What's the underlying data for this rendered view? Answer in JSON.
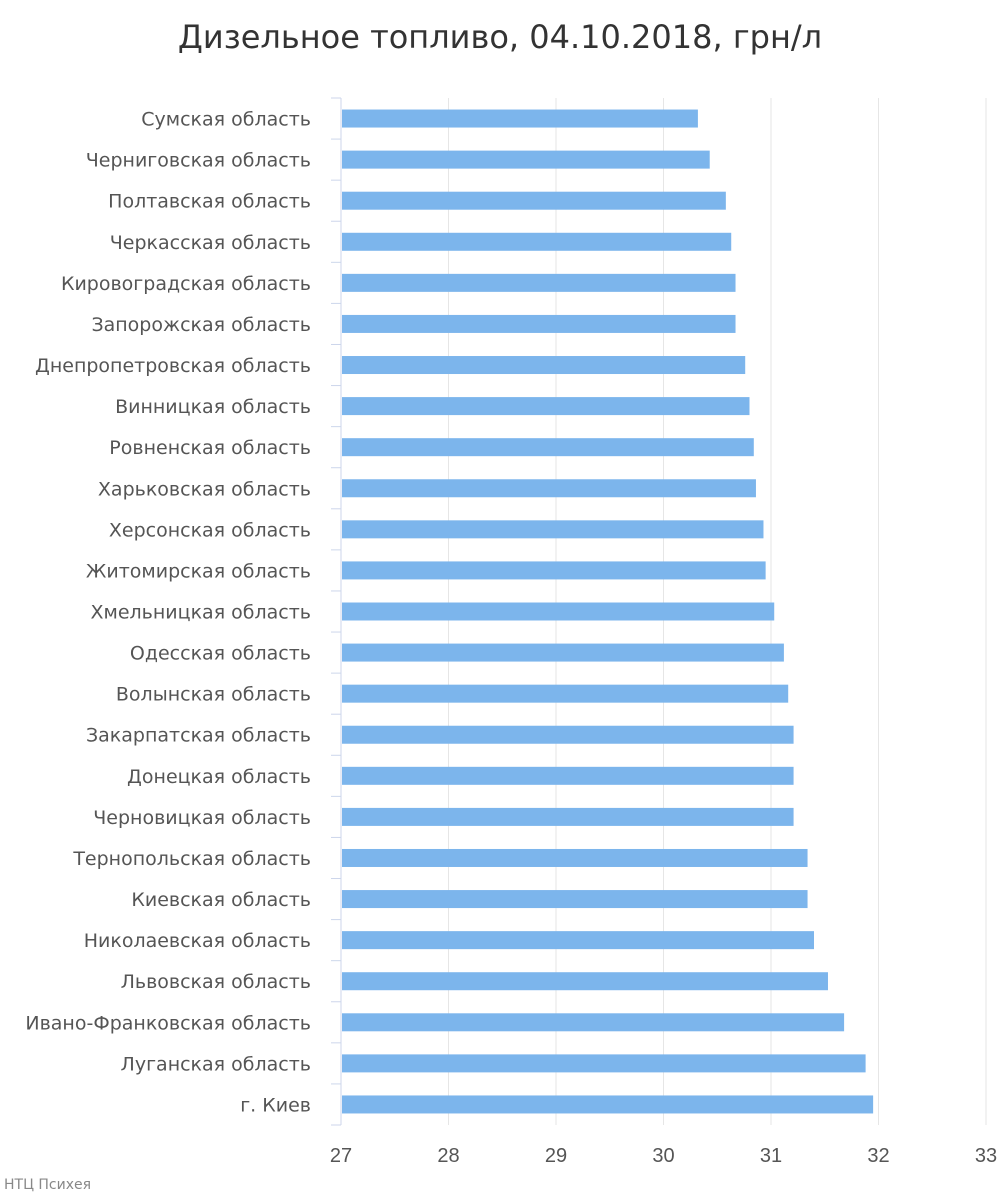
{
  "chart_data": {
    "type": "bar",
    "orientation": "horizontal",
    "title": "Дизельное топливо, 04.10.2018, грн/л",
    "xlabel": "",
    "ylabel": "",
    "xlim": [
      27,
      33
    ],
    "ticks": [
      "27",
      "28",
      "29",
      "30",
      "31",
      "32",
      "33"
    ],
    "grid": true,
    "color": "#7cb5ec",
    "credit": "НТЦ Психея",
    "categories": [
      "Сумская область",
      "Черниговская область",
      "Полтавская область",
      "Черкасская область",
      "Кировоградская область",
      "Запорожская область",
      "Днепропетровская область",
      "Винницкая область",
      "Ровненская область",
      "Харьковская область",
      "Херсонская область",
      "Житомирская область",
      "Хмельницкая область",
      "Одесская область",
      "Волынская область",
      "Закарпатская область",
      "Донецкая область",
      "Черновицкая область",
      "Тернопольская область",
      "Киевская область",
      "Николаевская область",
      "Львовская область",
      "Ивано-Франковская область",
      "Луганская область",
      "г. Киев"
    ],
    "values": [
      30.32,
      30.43,
      30.58,
      30.63,
      30.67,
      30.67,
      30.76,
      30.8,
      30.84,
      30.86,
      30.93,
      30.95,
      31.03,
      31.12,
      31.16,
      31.21,
      31.21,
      31.21,
      31.34,
      31.34,
      31.4,
      31.53,
      31.68,
      31.88,
      31.95
    ]
  }
}
